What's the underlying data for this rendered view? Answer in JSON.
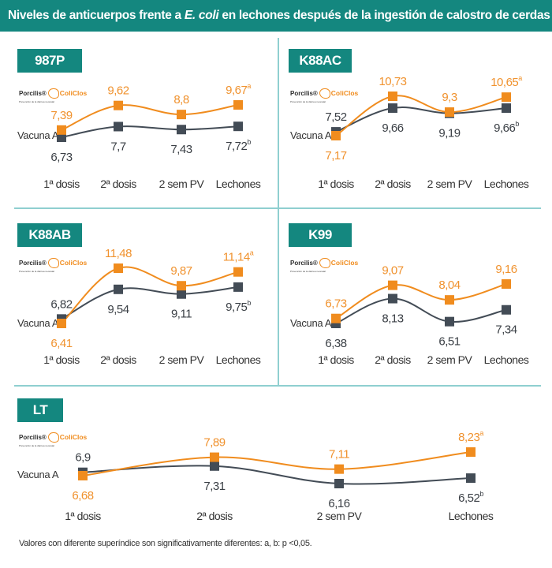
{
  "header": {
    "title_pre": "Niveles de anticuerpos frente a ",
    "title_italic": "E. coli",
    "title_post": " en lechones después de la ingestión de calostro de cerdas vacunadas"
  },
  "logo": {
    "brand": "Porcilis®",
    "product": "ColiClos",
    "tagline": "Prevención de la diarrea neonatal"
  },
  "series_label": "Vacuna A",
  "colors": {
    "accent": "#14877f",
    "coliclos": "#f08c1e",
    "vacuna_a": "#434c56"
  },
  "footnote": "Valores con diferente superíndice son significativamente diferentes: a, b: p <0,05.",
  "chart_data": [
    {
      "type": "line",
      "title": "987P",
      "categories": [
        "1ª dosis",
        "2ª dosis",
        "2 sem PV",
        "Lechones"
      ],
      "series": [
        {
          "name": "Porcilis® ColiClos",
          "values": [
            7.39,
            9.62,
            8.8,
            9.67
          ],
          "labels": [
            "7,39",
            "9,62",
            "8,8",
            "9,67"
          ],
          "sup": [
            "",
            "",
            "",
            "a"
          ]
        },
        {
          "name": "Vacuna A",
          "values": [
            6.73,
            7.7,
            7.43,
            7.72
          ],
          "labels": [
            "6,73",
            "7,7",
            "7,43",
            "7,72"
          ],
          "sup": [
            "",
            "",
            "",
            "b"
          ]
        }
      ]
    },
    {
      "type": "line",
      "title": "K88AC",
      "categories": [
        "1ª dosis",
        "2ª dosis",
        "2 sem PV",
        "Lechones"
      ],
      "series": [
        {
          "name": "Porcilis® ColiClos",
          "values": [
            7.17,
            10.73,
            9.3,
            10.65
          ],
          "labels": [
            "7,17",
            "10,73",
            "9,3",
            "10,65"
          ],
          "sup": [
            "",
            "",
            "",
            "a"
          ]
        },
        {
          "name": "Vacuna A",
          "values": [
            7.52,
            9.66,
            9.19,
            9.66
          ],
          "labels": [
            "7,52",
            "9,66",
            "9,19",
            "9,66"
          ],
          "sup": [
            "",
            "",
            "",
            "b"
          ]
        }
      ]
    },
    {
      "type": "line",
      "title": "K88AB",
      "categories": [
        "1ª dosis",
        "2ª dosis",
        "2 sem PV",
        "Lechones"
      ],
      "series": [
        {
          "name": "Porcilis® ColiClos",
          "values": [
            6.41,
            11.48,
            9.87,
            11.14
          ],
          "labels": [
            "6,41",
            "11,48",
            "9,87",
            "11,14"
          ],
          "sup": [
            "",
            "",
            "",
            "a"
          ]
        },
        {
          "name": "Vacuna A",
          "values": [
            6.82,
            9.54,
            9.11,
            9.75
          ],
          "labels": [
            "6,82",
            "9,54",
            "9,11",
            "9,75"
          ],
          "sup": [
            "",
            "",
            "",
            "b"
          ]
        }
      ]
    },
    {
      "type": "line",
      "title": "K99",
      "categories": [
        "1ª dosis",
        "2ª dosis",
        "2 sem PV",
        "Lechones"
      ],
      "series": [
        {
          "name": "Porcilis® ColiClos",
          "values": [
            6.73,
            9.07,
            8.04,
            9.16
          ],
          "labels": [
            "6,73",
            "9,07",
            "8,04",
            "9,16"
          ],
          "sup": [
            "",
            "",
            "",
            ""
          ]
        },
        {
          "name": "Vacuna A",
          "values": [
            6.38,
            8.13,
            6.51,
            7.34
          ],
          "labels": [
            "6,38",
            "8,13",
            "6,51",
            "7,34"
          ],
          "sup": [
            "",
            "",
            "",
            ""
          ]
        }
      ]
    },
    {
      "type": "line",
      "title": "LT",
      "categories": [
        "1ª dosis",
        "2ª dosis",
        "2 sem PV",
        "Lechones"
      ],
      "series": [
        {
          "name": "Porcilis® ColiClos",
          "values": [
            6.68,
            7.89,
            7.11,
            8.23
          ],
          "labels": [
            "6,68",
            "7,89",
            "7,11",
            "8,23"
          ],
          "sup": [
            "",
            "",
            "",
            "a"
          ]
        },
        {
          "name": "Vacuna A",
          "values": [
            6.9,
            7.31,
            6.16,
            6.52
          ],
          "labels": [
            "6,9",
            "7,31",
            "6,16",
            "6,52"
          ],
          "sup": [
            "",
            "",
            "",
            "b"
          ]
        }
      ]
    }
  ]
}
